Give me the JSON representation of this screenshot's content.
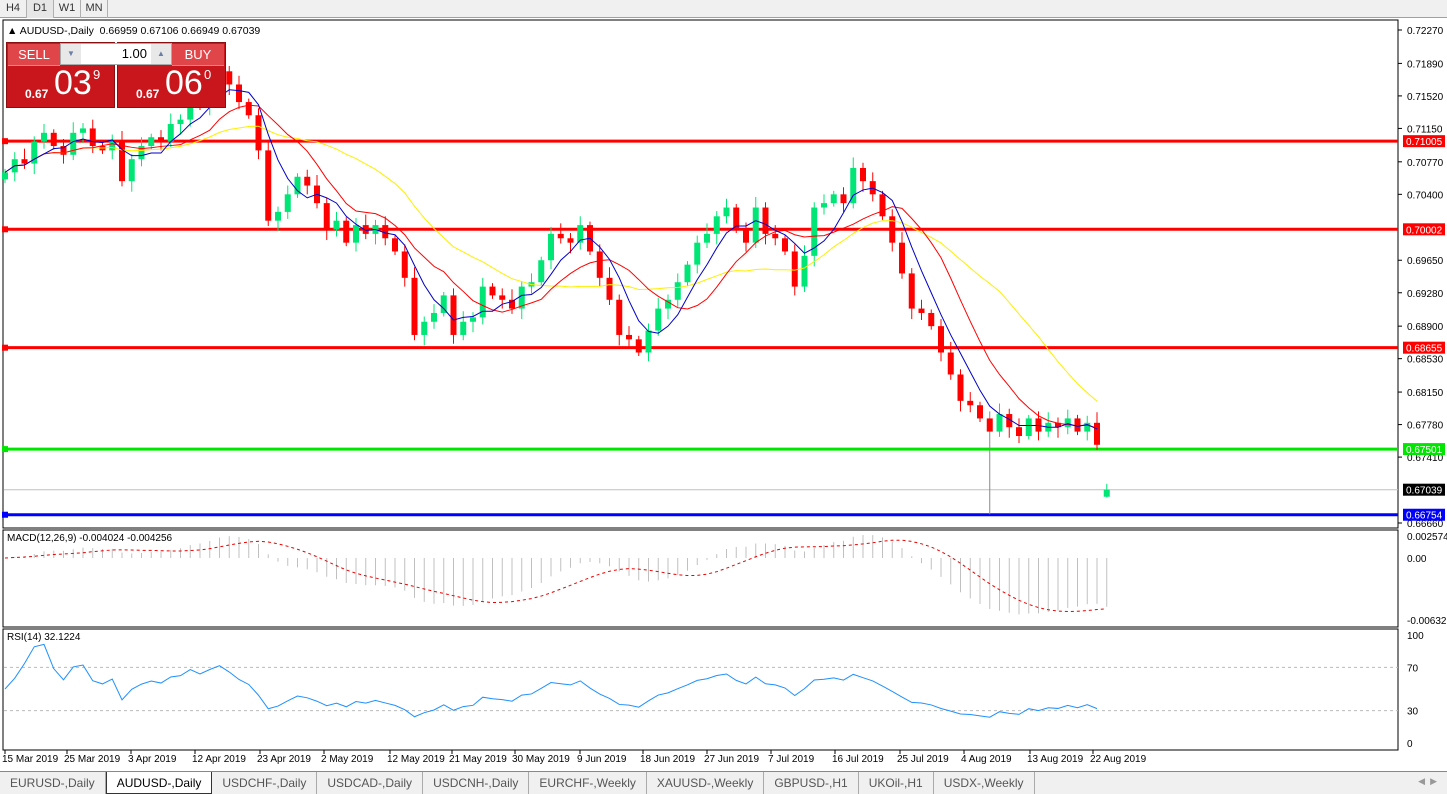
{
  "timeframes": [
    "H4",
    "D1",
    "W1",
    "MN"
  ],
  "active_timeframe": "D1",
  "chart": {
    "symbol_line": "AUDUSD-,Daily",
    "ohlc": "0.66959 0.67106 0.66949 0.67039"
  },
  "trade_panel": {
    "sell_label": "SELL",
    "buy_label": "BUY",
    "lot": "1.00",
    "sell_price": {
      "prefix": "0.67",
      "big": "03",
      "sup": "9"
    },
    "buy_price": {
      "prefix": "0.67",
      "big": "06",
      "sup": "0"
    }
  },
  "macd": {
    "label": "MACD(12,26,9) -0.004024 -0.004256",
    "axis": [
      "0.002574",
      "0.00",
      "-0.006326"
    ]
  },
  "rsi": {
    "label": "RSI(14) 32.1224",
    "axis": [
      "100",
      "70",
      "30",
      "0"
    ]
  },
  "tabs": [
    "EURUSD-,Daily",
    "AUDUSD-,Daily",
    "USDCHF-,Daily",
    "USDCAD-,Daily",
    "USDCNH-,Daily",
    "EURCHF-,Weekly",
    "XAUUSD-,Weekly",
    "GBPUSD-,H1",
    "UKOil-,H1",
    "USDX-,Weekly"
  ],
  "active_tab": "AUDUSD-,Daily",
  "colors": {
    "bull": "#00e676",
    "bear": "#ff0000",
    "ma_fast": "#0000c8",
    "ma_mid": "#ff0000",
    "ma_slow": "#ffee00",
    "rsi": "#1e90ff"
  },
  "chart_data": {
    "type": "candlestick",
    "price_axis": [
      "0.72270",
      "0.71890",
      "0.71520",
      "0.71150",
      "0.70770",
      "0.70400",
      "0.69650",
      "0.69280",
      "0.68900",
      "0.68530",
      "0.68150",
      "0.67780",
      "0.67410",
      "0.66660"
    ],
    "ylim": [
      0.6666,
      0.7227
    ],
    "date_ticks": [
      "15 Mar 2019",
      "25 Mar 2019",
      "3 Apr 2019",
      "12 Apr 2019",
      "23 Apr 2019",
      "2 May 2019",
      "12 May 2019",
      "21 May 2019",
      "30 May 2019",
      "9 Jun 2019",
      "18 Jun 2019",
      "27 Jun 2019",
      "7 Jul 2019",
      "16 Jul 2019",
      "25 Jul 2019",
      "4 Aug 2019",
      "13 Aug 2019",
      "22 Aug 2019"
    ],
    "closes": [
      0.7065,
      0.708,
      0.7075,
      0.71,
      0.711,
      0.7095,
      0.7085,
      0.711,
      0.7115,
      0.7095,
      0.709,
      0.71,
      0.7055,
      0.708,
      0.7095,
      0.7105,
      0.71,
      0.712,
      0.7125,
      0.715,
      0.714,
      0.716,
      0.718,
      0.7165,
      0.7145,
      0.713,
      0.709,
      0.701,
      0.702,
      0.704,
      0.706,
      0.705,
      0.703,
      0.7,
      0.701,
      0.6985,
      0.7005,
      0.6995,
      0.7005,
      0.699,
      0.6975,
      0.6945,
      0.688,
      0.6895,
      0.6905,
      0.6925,
      0.688,
      0.6895,
      0.69,
      0.6935,
      0.6925,
      0.692,
      0.691,
      0.6935,
      0.694,
      0.6965,
      0.6995,
      0.699,
      0.6985,
      0.7005,
      0.6975,
      0.6945,
      0.692,
      0.688,
      0.6875,
      0.686,
      0.6885,
      0.691,
      0.692,
      0.694,
      0.696,
      0.6985,
      0.6995,
      0.7015,
      0.7025,
      0.7,
      0.6985,
      0.7025,
      0.6995,
      0.699,
      0.6975,
      0.6935,
      0.697,
      0.7025,
      0.703,
      0.704,
      0.703,
      0.707,
      0.7055,
      0.704,
      0.7015,
      0.6985,
      0.695,
      0.691,
      0.6905,
      0.689,
      0.686,
      0.6835,
      0.6805,
      0.68,
      0.6785,
      0.677,
      0.679,
      0.6775,
      0.6765,
      0.6785,
      0.677,
      0.678,
      0.6775,
      0.6785,
      0.677,
      0.678,
      0.6755,
      0.67039
    ],
    "last_bar": {
      "open": 0.66959,
      "high": 0.67106,
      "low": 0.66949,
      "close": 0.67039
    },
    "levels": [
      {
        "value": "0.71005",
        "color": "#ff0000"
      },
      {
        "value": "0.70002",
        "color": "#ff0000"
      },
      {
        "value": "0.68655",
        "color": "#ff0000"
      },
      {
        "value": "0.67501",
        "color": "#00e600"
      },
      {
        "value": "0.66754",
        "color": "#0000ff"
      }
    ],
    "bid_line": {
      "value": "0.67039",
      "color": "#000000"
    }
  }
}
